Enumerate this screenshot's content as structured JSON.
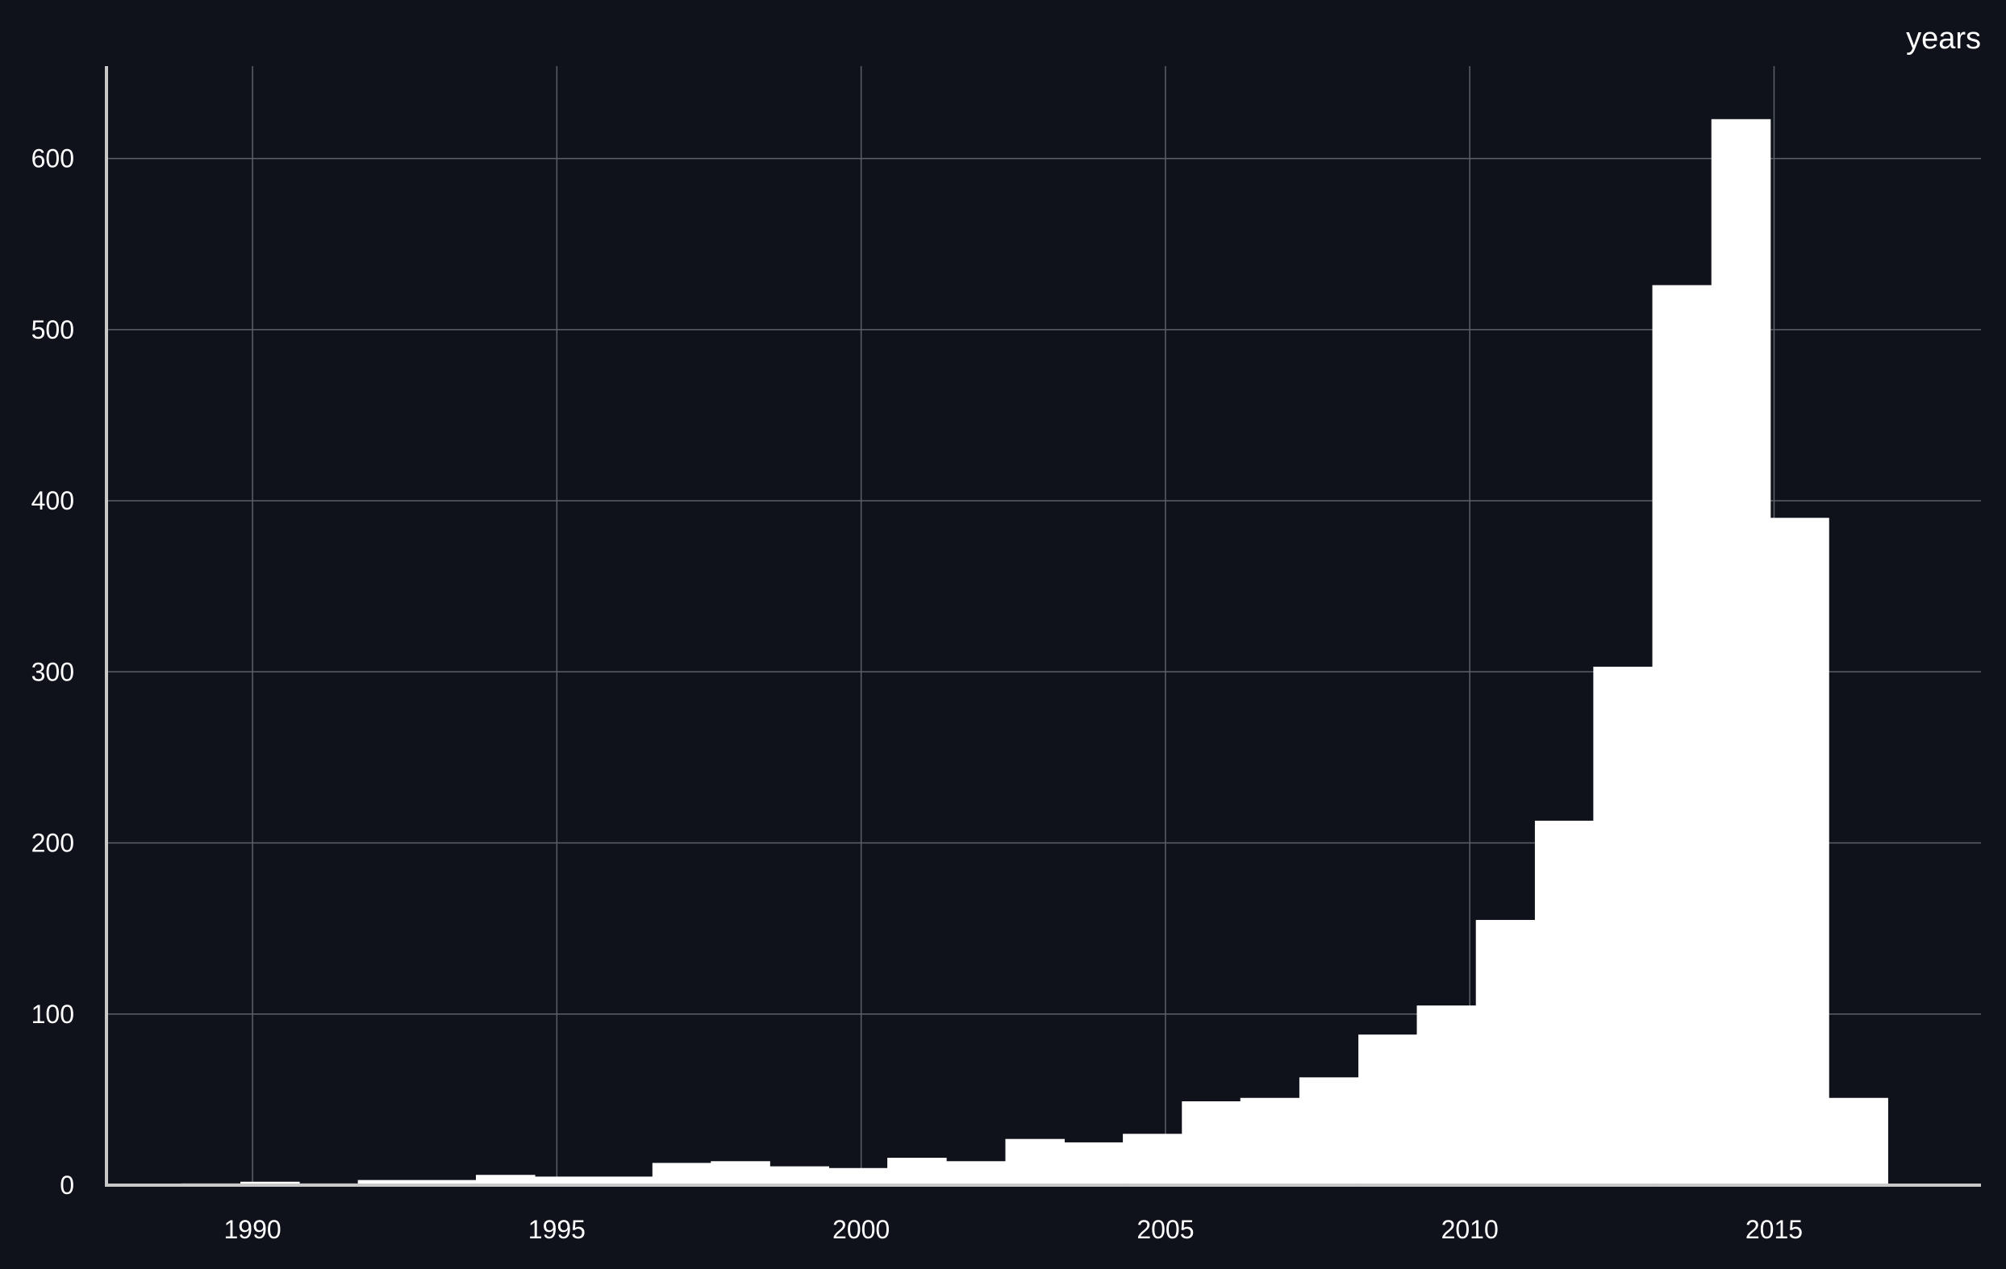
{
  "chart_data": {
    "type": "bar",
    "title": "",
    "xlabel": "",
    "ylabel": "",
    "unit_label": "years",
    "xlim": [
      1987.6,
      2018.4
    ],
    "ylim": [
      0,
      654
    ],
    "x_ticks": [
      1990,
      1995,
      2000,
      2005,
      2010,
      2015
    ],
    "y_ticks": [
      0,
      100,
      200,
      300,
      400,
      500,
      600
    ],
    "grid": true,
    "colors": {
      "background": "#0f121a",
      "bar": "#ffffff",
      "grid": "#5c6068",
      "axis": "#c8c8c8",
      "text": "#ffffff"
    },
    "bin_width": 0.967,
    "bins": [
      {
        "start": 1988.83,
        "value": 1
      },
      {
        "start": 1989.8,
        "value": 2
      },
      {
        "start": 1990.77,
        "value": 1
      },
      {
        "start": 1991.73,
        "value": 3
      },
      {
        "start": 1992.7,
        "value": 3
      },
      {
        "start": 1993.67,
        "value": 6
      },
      {
        "start": 1994.63,
        "value": 5
      },
      {
        "start": 1995.6,
        "value": 5
      },
      {
        "start": 1996.57,
        "value": 13
      },
      {
        "start": 1997.53,
        "value": 14
      },
      {
        "start": 1998.5,
        "value": 11
      },
      {
        "start": 1999.47,
        "value": 10
      },
      {
        "start": 2000.43,
        "value": 16
      },
      {
        "start": 2001.4,
        "value": 14
      },
      {
        "start": 2002.37,
        "value": 27
      },
      {
        "start": 2003.33,
        "value": 25
      },
      {
        "start": 2004.3,
        "value": 30
      },
      {
        "start": 2005.27,
        "value": 49
      },
      {
        "start": 2006.23,
        "value": 51
      },
      {
        "start": 2007.2,
        "value": 63
      },
      {
        "start": 2008.17,
        "value": 88
      },
      {
        "start": 2009.13,
        "value": 105
      },
      {
        "start": 2010.1,
        "value": 155
      },
      {
        "start": 2011.07,
        "value": 213
      },
      {
        "start": 2012.03,
        "value": 303
      },
      {
        "start": 2013.0,
        "value": 526
      },
      {
        "start": 2013.97,
        "value": 623
      },
      {
        "start": 2014.93,
        "value": 390
      },
      {
        "start": 2015.9,
        "value": 51
      }
    ]
  }
}
